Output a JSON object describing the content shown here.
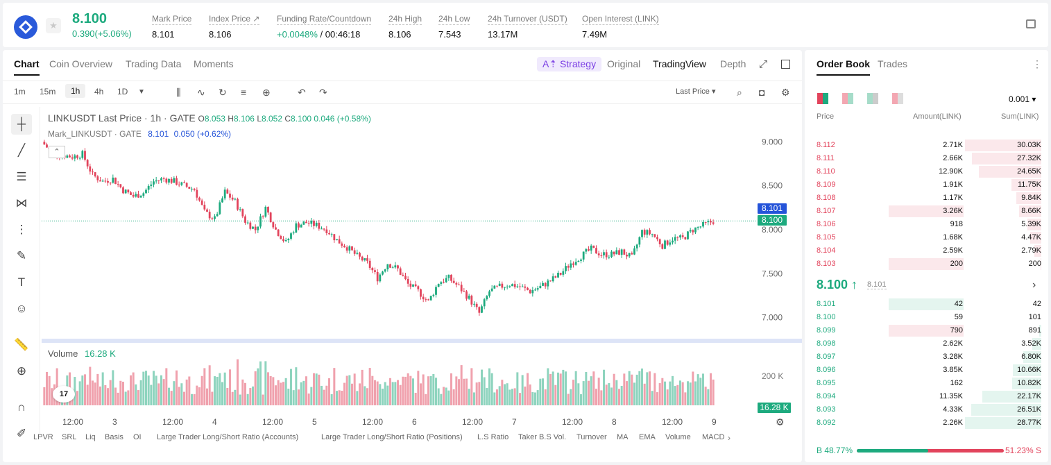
{
  "ticker": {
    "last_price": "8.100",
    "change": "0.390(+5.06%)",
    "stats": [
      {
        "label": "Mark Price",
        "value": "8.101"
      },
      {
        "label": "Index Price ↗",
        "value": "8.106"
      },
      {
        "label": "Funding Rate/Countdown",
        "value_up": "+0.0048%",
        "value": " / 00:46:18"
      },
      {
        "label": "24h High",
        "value": "8.106"
      },
      {
        "label": "24h Low",
        "value": "7.543"
      },
      {
        "label": "24h Turnover (USDT)",
        "value": "13.17M"
      },
      {
        "label": "Open Interest (LINK)",
        "value": "7.49M"
      }
    ]
  },
  "chart_tabs": [
    "Chart",
    "Coin Overview",
    "Trading Data",
    "Moments"
  ],
  "view_tabs": {
    "strategy": "A⇡ Strategy",
    "original": "Original",
    "tradingview": "TradingView",
    "depth": "Depth"
  },
  "timeframes": [
    "1m",
    "15m",
    "1h",
    "4h",
    "1D"
  ],
  "price_type": "Last Price",
  "legend": {
    "title": "LINKUSDT Last Price · 1h · GATE",
    "o_label": "O",
    "o": "8.053",
    "h_label": "H",
    "h": "8.106",
    "l_label": "L",
    "l": "8.052",
    "c_label": "C",
    "c": "8.100",
    "chg": "0.046 (+0.58%)",
    "mark_label": "Mark_LINKUSDT · GATE",
    "mark_value": "8.101",
    "mark_chg": "0.050 (+0.62%)"
  },
  "price_tags": {
    "mark": "8.101",
    "last": "8.100"
  },
  "volume": {
    "label": "Volume",
    "value": "16.28 K",
    "tag": "16.28 K",
    "axis": "200 K"
  },
  "tv_logo": "17",
  "indicators": [
    "LPVR",
    "SRL",
    "Liq",
    "Basis",
    "OI",
    "Large Trader Long/Short Ratio (Accounts)",
    "Large Trader Long/Short Ratio (Positions)",
    "L.S Ratio",
    "Taker B.S Vol.",
    "Turnover",
    "MA",
    "EMA",
    "Volume",
    "MACD"
  ],
  "chart_data": {
    "type": "candlestick",
    "title": "LINKUSDT Last Price · 1h · GATE",
    "y_ticks": [
      "9.000",
      "8.500",
      "8.000",
      "7.500",
      "7.000"
    ],
    "x_ticks": [
      "12:00",
      "3",
      "12:00",
      "4",
      "12:00",
      "5",
      "12:00",
      "6",
      "12:00",
      "7",
      "12:00",
      "8",
      "12:00",
      "9"
    ],
    "ylim": [
      6.95,
      9.05
    ],
    "close_path": [
      9.0,
      8.88,
      8.85,
      8.83,
      8.86,
      8.62,
      8.55,
      8.58,
      8.45,
      8.38,
      8.42,
      8.55,
      8.58,
      8.55,
      8.5,
      8.46,
      8.2,
      8.12,
      8.43,
      8.32,
      8.1,
      8.0,
      8.25,
      8.0,
      7.85,
      8.05,
      8.08,
      8.05,
      8.0,
      7.88,
      7.8,
      7.7,
      7.62,
      7.45,
      7.62,
      7.55,
      7.38,
      7.3,
      7.18,
      7.4,
      7.45,
      7.35,
      7.22,
      7.05,
      7.3,
      7.35,
      7.38,
      7.35,
      7.3,
      7.35,
      7.42,
      7.5,
      7.62,
      7.7,
      7.78,
      7.72,
      7.72,
      7.75,
      7.68,
      7.98,
      7.95,
      7.82,
      7.9,
      7.9,
      8.0,
      8.05,
      8.1
    ],
    "volume_max": 240000,
    "volume_axis": [
      200000
    ]
  },
  "orderbook": {
    "tabs": [
      "Order Book",
      "Trades"
    ],
    "precision": "0.001",
    "headers": {
      "price": "Price",
      "amount": "Amount(LINK)",
      "sum": "Sum(LINK)"
    },
    "asks": [
      {
        "price": "8.112",
        "amount": "2.71K",
        "sum": "30.03K",
        "sumf": 1.0,
        "amtf": 0
      },
      {
        "price": "8.111",
        "amount": "2.66K",
        "sum": "27.32K",
        "sumf": 0.91,
        "amtf": 0
      },
      {
        "price": "8.110",
        "amount": "12.90K",
        "sum": "24.65K",
        "sumf": 0.82,
        "amtf": 0
      },
      {
        "price": "8.109",
        "amount": "1.91K",
        "sum": "11.75K",
        "sumf": 0.39,
        "amtf": 0
      },
      {
        "price": "8.108",
        "amount": "1.17K",
        "sum": "9.84K",
        "sumf": 0.33,
        "amtf": 0
      },
      {
        "price": "8.107",
        "amount": "3.26K",
        "sum": "8.66K",
        "sumf": 0.29,
        "amtf": 0.75
      },
      {
        "price": "8.106",
        "amount": "918",
        "sum": "5.39K",
        "sumf": 0.18,
        "amtf": 0
      },
      {
        "price": "8.105",
        "amount": "1.68K",
        "sum": "4.47K",
        "sumf": 0.15,
        "amtf": 0
      },
      {
        "price": "8.104",
        "amount": "2.59K",
        "sum": "2.79K",
        "sumf": 0.09,
        "amtf": 0
      },
      {
        "price": "8.103",
        "amount": "200",
        "sum": "200",
        "sumf": 0.01,
        "amtf": 0.75
      }
    ],
    "mid_price": "8.100 ↑",
    "mid_mark": "8.101",
    "bids": [
      {
        "price": "8.101",
        "amount": "42",
        "sum": "42",
        "sumf": 0.0,
        "amtf": 0.75
      },
      {
        "price": "8.100",
        "amount": "59",
        "sum": "101",
        "sumf": 0.0,
        "amtf": 0
      },
      {
        "price": "8.099",
        "amount": "790",
        "sum": "891",
        "sumf": 0.03,
        "amtf": 0.75,
        "red": true
      },
      {
        "price": "8.098",
        "amount": "2.62K",
        "sum": "3.52K",
        "sumf": 0.12,
        "amtf": 0
      },
      {
        "price": "8.097",
        "amount": "3.28K",
        "sum": "6.80K",
        "sumf": 0.24,
        "amtf": 0
      },
      {
        "price": "8.096",
        "amount": "3.85K",
        "sum": "10.66K",
        "sumf": 0.37,
        "amtf": 0
      },
      {
        "price": "8.095",
        "amount": "162",
        "sum": "10.82K",
        "sumf": 0.38,
        "amtf": 0
      },
      {
        "price": "8.094",
        "amount": "11.35K",
        "sum": "22.17K",
        "sumf": 0.77,
        "amtf": 0
      },
      {
        "price": "8.093",
        "amount": "4.33K",
        "sum": "26.51K",
        "sumf": 0.92,
        "amtf": 0
      },
      {
        "price": "8.092",
        "amount": "2.26K",
        "sum": "28.77K",
        "sumf": 1.0,
        "amtf": 0
      }
    ],
    "buy_ratio": "B 48.77%",
    "sell_ratio": "51.23% S",
    "buy_fraction": 0.4877
  },
  "colors": {
    "up": "#1daa7e",
    "down": "#e2445c",
    "mark": "#2554d9"
  }
}
